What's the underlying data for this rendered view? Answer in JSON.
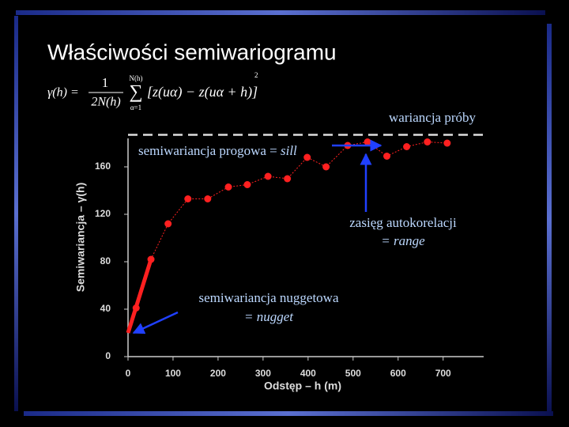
{
  "chart_data": {
    "type": "line",
    "title": "Właściwości semiwariogramu",
    "formula": {
      "lhs": "γ(h) =",
      "num": "1",
      "den": "2N(h)",
      "sum_top": "N(h)",
      "sum_sym": "∑",
      "sum_bottom": "α=1",
      "body": "[z(uα) − z(uα + h)]",
      "power": "2"
    },
    "xlabel": "Odstęp – h (m)",
    "ylabel": "Semiwariancja – γ(h)",
    "x": [
      18,
      51,
      89,
      133,
      177,
      223,
      265,
      311,
      354,
      398,
      440,
      488,
      532,
      575,
      619,
      665,
      709
    ],
    "series": [
      {
        "color": "#ff2020",
        "values": [
          41,
          82,
          112,
          133,
          133,
          143,
          145,
          152,
          150,
          168,
          160,
          178,
          181,
          169,
          177,
          181,
          180
        ]
      }
    ],
    "sill": 187,
    "nugget": 20,
    "xlim": [
      0,
      790
    ],
    "ylim": [
      0,
      184
    ],
    "xticks": [
      0,
      100,
      200,
      300,
      400,
      500,
      600,
      700
    ],
    "yticks": [
      0,
      40,
      80,
      120,
      160
    ],
    "annotations": {
      "sample_variance": "wariancja próby",
      "sill": {
        "text": "semiwariancja progowa = ",
        "emph": "sill"
      },
      "range": {
        "text": "zasięg autokorelacji",
        "emph": "= range"
      },
      "nugget": {
        "text": "semiwariancja nuggetowa",
        "emph": "= nugget"
      }
    }
  }
}
